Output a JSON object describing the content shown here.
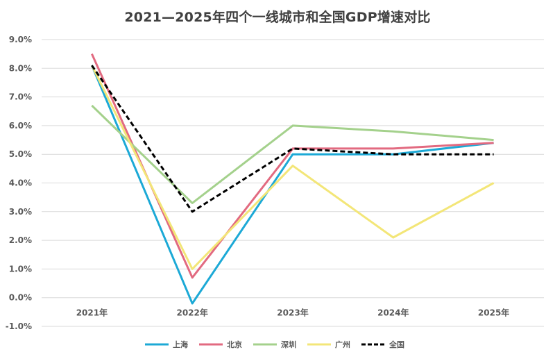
{
  "chart_data": {
    "type": "line",
    "title": "2021—2025年四个一线城市和全国GDP增速对比",
    "xlabel": "",
    "ylabel": "",
    "categories": [
      "2021年",
      "2022年",
      "2023年",
      "2024年",
      "2025年"
    ],
    "ylim": [
      -0.01,
      0.09
    ],
    "y_ticks": [
      "-1.0%",
      "0.0%",
      "1.0%",
      "2.0%",
      "3.0%",
      "4.0%",
      "5.0%",
      "6.0%",
      "7.0%",
      "8.0%",
      "9.0%"
    ],
    "grid": "horizontal",
    "legend_position": "bottom",
    "series": [
      {
        "name": "上海",
        "color": "#1CA9D6",
        "dashed": false,
        "values": [
          0.081,
          -0.002,
          0.05,
          0.05,
          0.054
        ]
      },
      {
        "name": "北京",
        "color": "#E26A80",
        "dashed": false,
        "values": [
          0.085,
          0.007,
          0.052,
          0.052,
          0.054
        ]
      },
      {
        "name": "深圳",
        "color": "#A4D18C",
        "dashed": false,
        "values": [
          0.067,
          0.033,
          0.06,
          0.058,
          0.055
        ]
      },
      {
        "name": "广州",
        "color": "#F3E678",
        "dashed": false,
        "values": [
          0.081,
          0.01,
          0.046,
          0.021,
          0.04
        ]
      },
      {
        "name": "全国",
        "color": "#000000",
        "dashed": true,
        "values": [
          0.081,
          0.03,
          0.052,
          0.05,
          0.05
        ]
      }
    ]
  }
}
